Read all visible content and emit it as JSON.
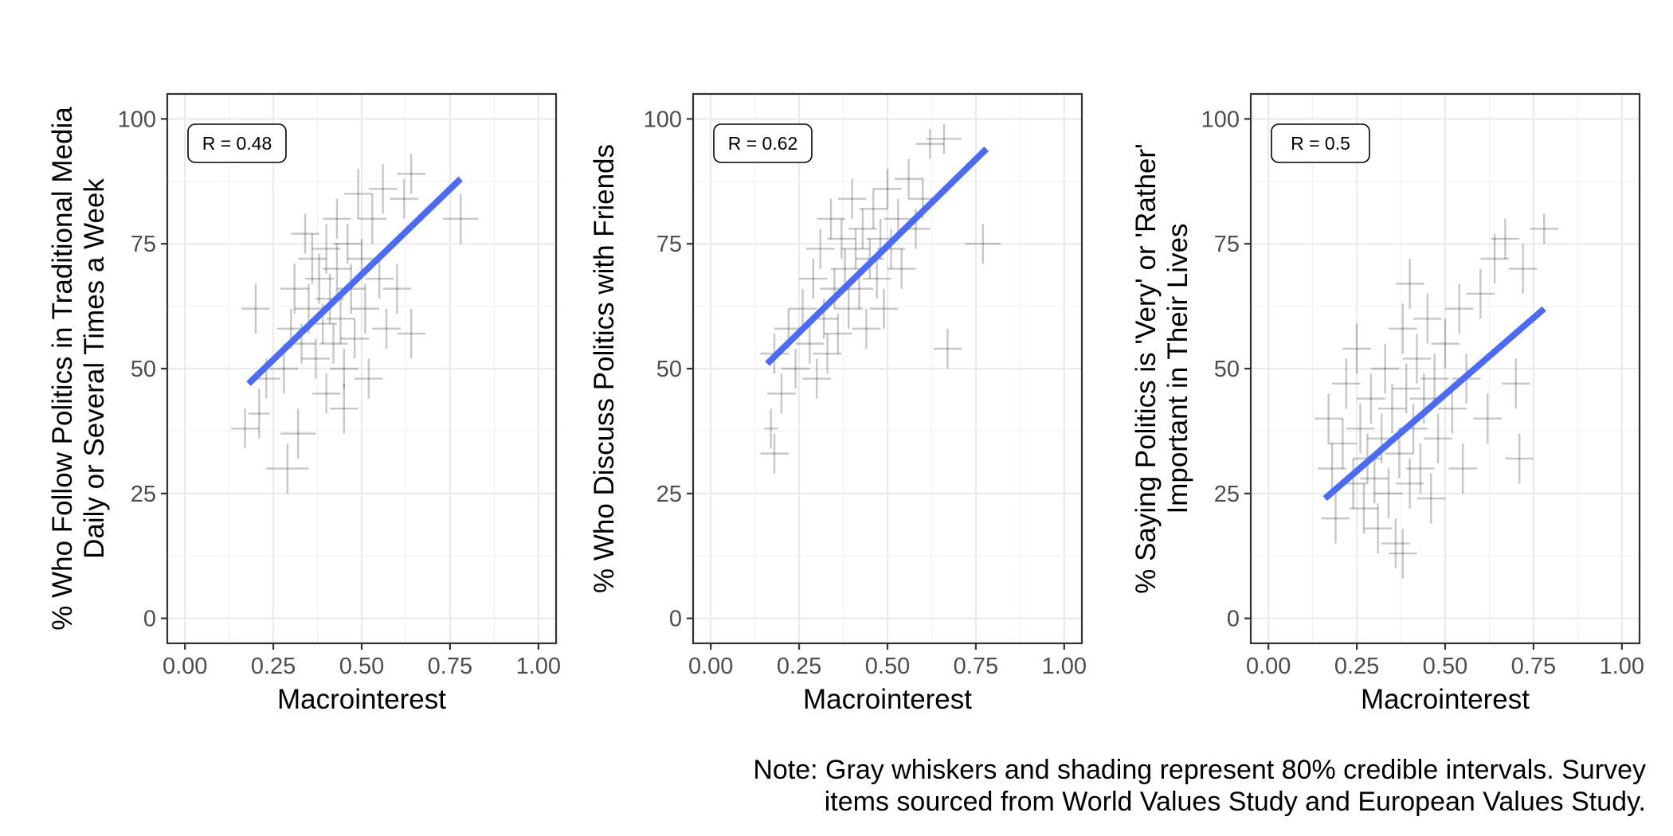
{
  "chart_data": [
    {
      "type": "scatter",
      "xlabel": "Macrointerest",
      "ylabel": [
        "% Who Follow Politics in Traditional Media",
        "Daily or Several Times a Week"
      ],
      "xlim": [
        -0.05,
        1.05
      ],
      "ylim": [
        -5,
        105
      ],
      "x_ticks": [
        "0.00",
        "0.25",
        "0.50",
        "0.75",
        "1.00"
      ],
      "y_ticks": [
        "0",
        "25",
        "50",
        "75",
        "100"
      ],
      "grid": true,
      "annotation": "R = 0.48",
      "trend_line": {
        "x": [
          0.18,
          0.78
        ],
        "y": [
          47,
          88
        ]
      },
      "points": [
        {
          "x": 0.2,
          "y": 62,
          "xerr": 0.04,
          "yerr": 5
        },
        {
          "x": 0.17,
          "y": 38,
          "xerr": 0.04,
          "yerr": 4
        },
        {
          "x": 0.21,
          "y": 41,
          "xerr": 0.03,
          "yerr": 5
        },
        {
          "x": 0.23,
          "y": 48,
          "xerr": 0.04,
          "yerr": 4
        },
        {
          "x": 0.29,
          "y": 30,
          "xerr": 0.06,
          "yerr": 5
        },
        {
          "x": 0.28,
          "y": 50,
          "xerr": 0.04,
          "yerr": 5
        },
        {
          "x": 0.32,
          "y": 37,
          "xerr": 0.05,
          "yerr": 5
        },
        {
          "x": 0.3,
          "y": 58,
          "xerr": 0.04,
          "yerr": 4
        },
        {
          "x": 0.31,
          "y": 66,
          "xerr": 0.04,
          "yerr": 5
        },
        {
          "x": 0.34,
          "y": 77,
          "xerr": 0.04,
          "yerr": 4
        },
        {
          "x": 0.36,
          "y": 72,
          "xerr": 0.04,
          "yerr": 5
        },
        {
          "x": 0.33,
          "y": 55,
          "xerr": 0.04,
          "yerr": 4
        },
        {
          "x": 0.35,
          "y": 62,
          "xerr": 0.04,
          "yerr": 5
        },
        {
          "x": 0.37,
          "y": 52,
          "xerr": 0.04,
          "yerr": 4
        },
        {
          "x": 0.38,
          "y": 68,
          "xerr": 0.04,
          "yerr": 5
        },
        {
          "x": 0.39,
          "y": 59,
          "xerr": 0.04,
          "yerr": 4
        },
        {
          "x": 0.4,
          "y": 74,
          "xerr": 0.04,
          "yerr": 5
        },
        {
          "x": 0.4,
          "y": 45,
          "xerr": 0.04,
          "yerr": 4
        },
        {
          "x": 0.41,
          "y": 64,
          "xerr": 0.04,
          "yerr": 5
        },
        {
          "x": 0.42,
          "y": 55,
          "xerr": 0.04,
          "yerr": 4
        },
        {
          "x": 0.43,
          "y": 70,
          "xerr": 0.04,
          "yerr": 5
        },
        {
          "x": 0.43,
          "y": 80,
          "xerr": 0.04,
          "yerr": 4
        },
        {
          "x": 0.44,
          "y": 60,
          "xerr": 0.04,
          "yerr": 5
        },
        {
          "x": 0.45,
          "y": 50,
          "xerr": 0.04,
          "yerr": 4
        },
        {
          "x": 0.45,
          "y": 42,
          "xerr": 0.04,
          "yerr": 5
        },
        {
          "x": 0.46,
          "y": 75,
          "xerr": 0.04,
          "yerr": 4
        },
        {
          "x": 0.47,
          "y": 66,
          "xerr": 0.04,
          "yerr": 5
        },
        {
          "x": 0.48,
          "y": 56,
          "xerr": 0.04,
          "yerr": 4
        },
        {
          "x": 0.49,
          "y": 85,
          "xerr": 0.04,
          "yerr": 5
        },
        {
          "x": 0.5,
          "y": 72,
          "xerr": 0.04,
          "yerr": 4
        },
        {
          "x": 0.51,
          "y": 62,
          "xerr": 0.04,
          "yerr": 5
        },
        {
          "x": 0.52,
          "y": 48,
          "xerr": 0.04,
          "yerr": 4
        },
        {
          "x": 0.53,
          "y": 80,
          "xerr": 0.04,
          "yerr": 5
        },
        {
          "x": 0.55,
          "y": 68,
          "xerr": 0.04,
          "yerr": 4
        },
        {
          "x": 0.56,
          "y": 86,
          "xerr": 0.04,
          "yerr": 5
        },
        {
          "x": 0.57,
          "y": 58,
          "xerr": 0.04,
          "yerr": 4
        },
        {
          "x": 0.6,
          "y": 66,
          "xerr": 0.04,
          "yerr": 5
        },
        {
          "x": 0.62,
          "y": 84,
          "xerr": 0.04,
          "yerr": 4
        },
        {
          "x": 0.64,
          "y": 89,
          "xerr": 0.04,
          "yerr": 4
        },
        {
          "x": 0.64,
          "y": 57,
          "xerr": 0.04,
          "yerr": 5
        },
        {
          "x": 0.78,
          "y": 80,
          "xerr": 0.05,
          "yerr": 5
        }
      ]
    },
    {
      "type": "scatter",
      "xlabel": "Macrointerest",
      "ylabel": [
        "% Who Discuss Politics with Friends"
      ],
      "xlim": [
        -0.05,
        1.05
      ],
      "ylim": [
        -5,
        105
      ],
      "x_ticks": [
        "0.00",
        "0.25",
        "0.50",
        "0.75",
        "1.00"
      ],
      "y_ticks": [
        "0",
        "25",
        "50",
        "75",
        "100"
      ],
      "grid": true,
      "annotation": "R = 0.62",
      "trend_line": {
        "x": [
          0.16,
          0.78
        ],
        "y": [
          51,
          94
        ]
      },
      "points": [
        {
          "x": 0.17,
          "y": 38,
          "xerr": 0.02,
          "yerr": 4
        },
        {
          "x": 0.18,
          "y": 33,
          "xerr": 0.04,
          "yerr": 4
        },
        {
          "x": 0.18,
          "y": 53,
          "xerr": 0.04,
          "yerr": 4
        },
        {
          "x": 0.2,
          "y": 45,
          "xerr": 0.04,
          "yerr": 4
        },
        {
          "x": 0.22,
          "y": 58,
          "xerr": 0.04,
          "yerr": 4
        },
        {
          "x": 0.24,
          "y": 50,
          "xerr": 0.04,
          "yerr": 4
        },
        {
          "x": 0.26,
          "y": 62,
          "xerr": 0.04,
          "yerr": 4
        },
        {
          "x": 0.28,
          "y": 55,
          "xerr": 0.04,
          "yerr": 4
        },
        {
          "x": 0.29,
          "y": 68,
          "xerr": 0.04,
          "yerr": 4
        },
        {
          "x": 0.3,
          "y": 48,
          "xerr": 0.04,
          "yerr": 4
        },
        {
          "x": 0.31,
          "y": 74,
          "xerr": 0.04,
          "yerr": 4
        },
        {
          "x": 0.32,
          "y": 60,
          "xerr": 0.04,
          "yerr": 4
        },
        {
          "x": 0.33,
          "y": 53,
          "xerr": 0.04,
          "yerr": 4
        },
        {
          "x": 0.34,
          "y": 80,
          "xerr": 0.04,
          "yerr": 4
        },
        {
          "x": 0.35,
          "y": 66,
          "xerr": 0.04,
          "yerr": 4
        },
        {
          "x": 0.36,
          "y": 57,
          "xerr": 0.04,
          "yerr": 4
        },
        {
          "x": 0.37,
          "y": 76,
          "xerr": 0.04,
          "yerr": 4
        },
        {
          "x": 0.38,
          "y": 70,
          "xerr": 0.04,
          "yerr": 4
        },
        {
          "x": 0.39,
          "y": 62,
          "xerr": 0.04,
          "yerr": 4
        },
        {
          "x": 0.4,
          "y": 84,
          "xerr": 0.04,
          "yerr": 4
        },
        {
          "x": 0.41,
          "y": 74,
          "xerr": 0.04,
          "yerr": 4
        },
        {
          "x": 0.42,
          "y": 66,
          "xerr": 0.04,
          "yerr": 4
        },
        {
          "x": 0.43,
          "y": 78,
          "xerr": 0.04,
          "yerr": 4
        },
        {
          "x": 0.44,
          "y": 58,
          "xerr": 0.04,
          "yerr": 4
        },
        {
          "x": 0.45,
          "y": 72,
          "xerr": 0.04,
          "yerr": 4
        },
        {
          "x": 0.46,
          "y": 82,
          "xerr": 0.04,
          "yerr": 4
        },
        {
          "x": 0.47,
          "y": 68,
          "xerr": 0.04,
          "yerr": 4
        },
        {
          "x": 0.48,
          "y": 76,
          "xerr": 0.04,
          "yerr": 4
        },
        {
          "x": 0.49,
          "y": 62,
          "xerr": 0.04,
          "yerr": 4
        },
        {
          "x": 0.5,
          "y": 86,
          "xerr": 0.04,
          "yerr": 4
        },
        {
          "x": 0.51,
          "y": 74,
          "xerr": 0.04,
          "yerr": 4
        },
        {
          "x": 0.53,
          "y": 80,
          "xerr": 0.04,
          "yerr": 4
        },
        {
          "x": 0.54,
          "y": 70,
          "xerr": 0.04,
          "yerr": 4
        },
        {
          "x": 0.56,
          "y": 88,
          "xerr": 0.04,
          "yerr": 4
        },
        {
          "x": 0.58,
          "y": 78,
          "xerr": 0.04,
          "yerr": 4
        },
        {
          "x": 0.6,
          "y": 84,
          "xerr": 0.04,
          "yerr": 4
        },
        {
          "x": 0.62,
          "y": 95,
          "xerr": 0.04,
          "yerr": 3
        },
        {
          "x": 0.66,
          "y": 96,
          "xerr": 0.05,
          "yerr": 3
        },
        {
          "x": 0.67,
          "y": 54,
          "xerr": 0.04,
          "yerr": 4
        },
        {
          "x": 0.77,
          "y": 75,
          "xerr": 0.05,
          "yerr": 4
        }
      ]
    },
    {
      "type": "scatter",
      "xlabel": "Macrointerest",
      "ylabel": [
        "% Saying Politics is 'Very' or 'Rather'",
        "Important in Their Lives"
      ],
      "xlim": [
        -0.05,
        1.05
      ],
      "ylim": [
        -5,
        105
      ],
      "x_ticks": [
        "0.00",
        "0.25",
        "0.50",
        "0.75",
        "1.00"
      ],
      "y_ticks": [
        "0",
        "25",
        "50",
        "75",
        "100"
      ],
      "grid": true,
      "annotation": "R = 0.5",
      "trend_line": {
        "x": [
          0.16,
          0.78
        ],
        "y": [
          24,
          62
        ]
      },
      "points": [
        {
          "x": 0.17,
          "y": 40,
          "xerr": 0.04,
          "yerr": 5
        },
        {
          "x": 0.18,
          "y": 30,
          "xerr": 0.04,
          "yerr": 5
        },
        {
          "x": 0.19,
          "y": 20,
          "xerr": 0.04,
          "yerr": 5
        },
        {
          "x": 0.21,
          "y": 35,
          "xerr": 0.04,
          "yerr": 5
        },
        {
          "x": 0.22,
          "y": 47,
          "xerr": 0.04,
          "yerr": 5
        },
        {
          "x": 0.24,
          "y": 27,
          "xerr": 0.04,
          "yerr": 5
        },
        {
          "x": 0.25,
          "y": 54,
          "xerr": 0.04,
          "yerr": 5
        },
        {
          "x": 0.26,
          "y": 38,
          "xerr": 0.04,
          "yerr": 5
        },
        {
          "x": 0.27,
          "y": 22,
          "xerr": 0.04,
          "yerr": 5
        },
        {
          "x": 0.28,
          "y": 32,
          "xerr": 0.04,
          "yerr": 5
        },
        {
          "x": 0.29,
          "y": 44,
          "xerr": 0.04,
          "yerr": 5
        },
        {
          "x": 0.3,
          "y": 28,
          "xerr": 0.04,
          "yerr": 5
        },
        {
          "x": 0.31,
          "y": 18,
          "xerr": 0.04,
          "yerr": 5
        },
        {
          "x": 0.32,
          "y": 36,
          "xerr": 0.04,
          "yerr": 5
        },
        {
          "x": 0.33,
          "y": 50,
          "xerr": 0.04,
          "yerr": 5
        },
        {
          "x": 0.34,
          "y": 25,
          "xerr": 0.04,
          "yerr": 5
        },
        {
          "x": 0.35,
          "y": 42,
          "xerr": 0.04,
          "yerr": 5
        },
        {
          "x": 0.36,
          "y": 15,
          "xerr": 0.04,
          "yerr": 5
        },
        {
          "x": 0.37,
          "y": 33,
          "xerr": 0.04,
          "yerr": 5
        },
        {
          "x": 0.38,
          "y": 58,
          "xerr": 0.04,
          "yerr": 5
        },
        {
          "x": 0.38,
          "y": 13,
          "xerr": 0.04,
          "yerr": 5
        },
        {
          "x": 0.39,
          "y": 46,
          "xerr": 0.04,
          "yerr": 5
        },
        {
          "x": 0.4,
          "y": 27,
          "xerr": 0.04,
          "yerr": 5
        },
        {
          "x": 0.4,
          "y": 67,
          "xerr": 0.04,
          "yerr": 5
        },
        {
          "x": 0.41,
          "y": 38,
          "xerr": 0.04,
          "yerr": 5
        },
        {
          "x": 0.42,
          "y": 52,
          "xerr": 0.04,
          "yerr": 5
        },
        {
          "x": 0.43,
          "y": 30,
          "xerr": 0.04,
          "yerr": 5
        },
        {
          "x": 0.44,
          "y": 44,
          "xerr": 0.04,
          "yerr": 5
        },
        {
          "x": 0.45,
          "y": 60,
          "xerr": 0.04,
          "yerr": 5
        },
        {
          "x": 0.46,
          "y": 24,
          "xerr": 0.04,
          "yerr": 5
        },
        {
          "x": 0.47,
          "y": 48,
          "xerr": 0.04,
          "yerr": 5
        },
        {
          "x": 0.48,
          "y": 36,
          "xerr": 0.04,
          "yerr": 5
        },
        {
          "x": 0.5,
          "y": 55,
          "xerr": 0.04,
          "yerr": 5
        },
        {
          "x": 0.52,
          "y": 42,
          "xerr": 0.04,
          "yerr": 5
        },
        {
          "x": 0.54,
          "y": 62,
          "xerr": 0.04,
          "yerr": 5
        },
        {
          "x": 0.55,
          "y": 30,
          "xerr": 0.04,
          "yerr": 5
        },
        {
          "x": 0.56,
          "y": 48,
          "xerr": 0.04,
          "yerr": 5
        },
        {
          "x": 0.6,
          "y": 65,
          "xerr": 0.04,
          "yerr": 5
        },
        {
          "x": 0.62,
          "y": 40,
          "xerr": 0.04,
          "yerr": 5
        },
        {
          "x": 0.64,
          "y": 72,
          "xerr": 0.04,
          "yerr": 5
        },
        {
          "x": 0.67,
          "y": 76,
          "xerr": 0.04,
          "yerr": 4
        },
        {
          "x": 0.7,
          "y": 47,
          "xerr": 0.04,
          "yerr": 5
        },
        {
          "x": 0.72,
          "y": 70,
          "xerr": 0.04,
          "yerr": 5
        },
        {
          "x": 0.71,
          "y": 32,
          "xerr": 0.04,
          "yerr": 5
        },
        {
          "x": 0.78,
          "y": 78,
          "xerr": 0.04,
          "yerr": 3
        }
      ]
    }
  ],
  "caption": [
    "Note: Gray whiskers and shading represent 80% credible intervals. Survey",
    "items sourced from World Values Study and European Values Study."
  ]
}
